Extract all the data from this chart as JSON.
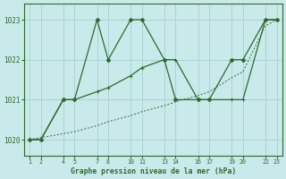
{
  "title": "Graphe pression niveau de la mer (hPa)",
  "bg_color": "#c8eaea",
  "grid_color": "#aad4d4",
  "line_color": "#2d6a2d",
  "xtick_pairs": [
    1,
    2,
    4,
    5,
    7,
    8,
    10,
    11,
    13,
    14,
    16,
    17,
    19,
    20,
    22,
    23
  ],
  "ylim": [
    1019.6,
    1023.4
  ],
  "yticks": [
    1020,
    1021,
    1022,
    1023
  ],
  "series_dot_x": [
    1,
    2,
    4,
    5,
    7,
    8,
    10,
    11,
    13,
    14,
    16,
    17,
    19,
    20,
    22,
    23
  ],
  "series_dot_y": [
    1020.0,
    1020.05,
    1020.15,
    1020.2,
    1020.35,
    1020.45,
    1020.6,
    1020.7,
    1020.85,
    1020.95,
    1021.1,
    1021.2,
    1021.55,
    1021.7,
    1022.85,
    1023.0
  ],
  "series_cross_x": [
    1,
    2,
    4,
    5,
    7,
    8,
    10,
    11,
    13,
    14,
    16,
    17,
    19,
    20,
    22,
    23
  ],
  "series_cross_y": [
    1020.0,
    1020.0,
    1021.0,
    1021.0,
    1021.2,
    1021.3,
    1021.6,
    1021.8,
    1022.0,
    1022.0,
    1021.0,
    1021.0,
    1021.0,
    1021.0,
    1023.0,
    1023.0
  ],
  "series_peak_x": [
    1,
    2,
    4,
    5,
    7,
    8,
    10,
    11,
    13,
    14,
    16,
    17,
    19,
    20,
    22,
    23
  ],
  "series_peak_y": [
    1020.0,
    1020.0,
    1021.0,
    1021.0,
    1023.0,
    1022.0,
    1023.0,
    1023.0,
    1022.0,
    1021.0,
    1021.0,
    1021.0,
    1022.0,
    1022.0,
    1023.0,
    1023.0
  ]
}
